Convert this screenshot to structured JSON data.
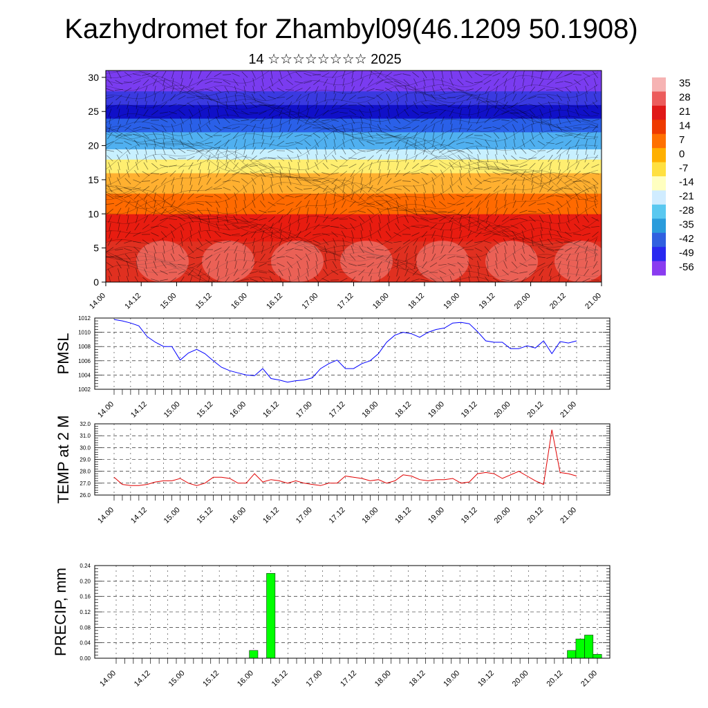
{
  "page": {
    "title": "Kazhydromet for Zhambyl09(46.1209 50.1908)",
    "subtitle": "14 ☆☆☆☆☆☆☆☆ 2025"
  },
  "chart_data": [
    {
      "id": "cross-section",
      "type": "heatmap",
      "title": "",
      "xlabel": "",
      "ylabel": "",
      "x_tick_labels": [
        "14.00",
        "14.12",
        "15.00",
        "15.12",
        "16.00",
        "16.12",
        "17.00",
        "17.12",
        "18.00",
        "18.12",
        "19.00",
        "19.12",
        "20.00",
        "20.12",
        "21.00"
      ],
      "ylim": [
        0,
        31
      ],
      "y_ticks": [
        0,
        5,
        10,
        15,
        20,
        25,
        30
      ],
      "colorbar": {
        "labels": [
          "35",
          "28",
          "21",
          "14",
          "7",
          "0",
          "-7",
          "-14",
          "-21",
          "-28",
          "-35",
          "-42",
          "-49",
          "-56"
        ],
        "colors": [
          "#f6b3b3",
          "#ec5c5c",
          "#e01818",
          "#ee3a00",
          "#ff7000",
          "#ffb000",
          "#ffe040",
          "#ffffc0",
          "#d0ecff",
          "#5ac8f0",
          "#2a9cdc",
          "#3060e0",
          "#2828f0",
          "#8a3cf0"
        ]
      },
      "field_bands": [
        {
          "from": 0,
          "to": 6,
          "color": "#e03020"
        },
        {
          "from": 6,
          "to": 10,
          "color": "#e81c10"
        },
        {
          "from": 10,
          "to": 13,
          "color": "#ff6a00"
        },
        {
          "from": 13,
          "to": 16,
          "color": "#ffb030"
        },
        {
          "from": 16,
          "to": 18,
          "color": "#ffee70"
        },
        {
          "from": 18,
          "to": 19.5,
          "color": "#c8f0ff"
        },
        {
          "from": 19.5,
          "to": 22,
          "color": "#50b0f0"
        },
        {
          "from": 22,
          "to": 24,
          "color": "#2a60e8"
        },
        {
          "from": 24,
          "to": 26,
          "color": "#1010c8"
        },
        {
          "from": 26,
          "to": 28,
          "color": "#3a3ae0"
        },
        {
          "from": 28,
          "to": 31,
          "color": "#7a3cf0"
        }
      ],
      "grid": false
    },
    {
      "id": "pmsl",
      "type": "line",
      "ylabel": "PMSL",
      "ylim": [
        1002,
        1012
      ],
      "y_ticks": [
        1002,
        1004,
        1006,
        1008,
        1010,
        1012
      ],
      "x_tick_labels": [
        "14.00",
        "14.12",
        "15.00",
        "15.12",
        "16.00",
        "16.12",
        "17.00",
        "17.12",
        "18.00",
        "18.12",
        "19.00",
        "19.12",
        "20.00",
        "20.12",
        "21.00"
      ],
      "color": "#0000ff",
      "grid": true,
      "x": [
        0,
        1,
        2,
        3,
        4,
        5,
        6,
        7,
        8,
        9,
        10,
        11,
        12,
        13,
        14,
        15,
        16,
        17,
        18,
        19,
        20,
        21,
        22,
        23,
        24,
        25,
        26,
        27,
        28,
        29,
        30,
        31,
        32,
        33,
        34,
        35,
        36,
        37,
        38,
        39,
        40,
        41,
        42,
        43,
        44,
        45,
        46,
        47,
        48,
        49,
        50,
        51,
        52,
        53,
        54,
        55,
        56
      ],
      "values": [
        1011.8,
        1011.6,
        1011.3,
        1010.9,
        1009.4,
        1008.6,
        1008.0,
        1008.0,
        1006.1,
        1007.1,
        1007.6,
        1007.0,
        1006.0,
        1005.1,
        1004.6,
        1004.3,
        1004.0,
        1003.9,
        1004.9,
        1003.5,
        1003.3,
        1003.0,
        1003.2,
        1003.3,
        1003.6,
        1004.9,
        1005.6,
        1006.1,
        1004.9,
        1004.9,
        1005.6,
        1006.0,
        1007.0,
        1008.6,
        1009.6,
        1010.0,
        1009.8,
        1009.3,
        1010.0,
        1010.4,
        1010.6,
        1011.3,
        1011.4,
        1011.2,
        1010.1,
        1008.8,
        1008.6,
        1008.6,
        1007.7,
        1007.7,
        1008.1,
        1007.8,
        1008.8,
        1007.0,
        1008.7,
        1008.5,
        1008.8
      ]
    },
    {
      "id": "temp2m",
      "type": "line",
      "ylabel": "TEMP at 2 M",
      "ylim": [
        26.0,
        32.0
      ],
      "y_ticks": [
        26.0,
        27.0,
        28.0,
        29.0,
        30.0,
        31.0,
        32.0
      ],
      "y_tick_labels": [
        "26.0",
        "27.0",
        "28.0",
        "29.0",
        "30.0",
        "31.0",
        "32.0"
      ],
      "x_tick_labels": [
        "14.00",
        "14.12",
        "15.00",
        "15.12",
        "16.00",
        "16.12",
        "17.00",
        "17.12",
        "18.00",
        "18.12",
        "19.00",
        "19.12",
        "20.00",
        "20.12",
        "21.00"
      ],
      "color": "#e00000",
      "grid": true,
      "x": [
        0,
        1,
        2,
        3,
        4,
        5,
        6,
        7,
        8,
        9,
        10,
        11,
        12,
        13,
        14,
        15,
        16,
        17,
        18,
        19,
        20,
        21,
        22,
        23,
        24,
        25,
        26,
        27,
        28,
        29,
        30,
        31,
        32,
        33,
        34,
        35,
        36,
        37,
        38,
        39,
        40,
        41,
        42,
        43,
        44,
        45,
        46,
        47,
        48,
        49,
        50,
        51,
        52,
        53,
        54,
        55,
        56
      ],
      "values": [
        27.5,
        26.9,
        26.8,
        26.8,
        26.9,
        27.1,
        27.2,
        27.2,
        27.4,
        27.0,
        26.8,
        27.0,
        27.5,
        27.5,
        27.4,
        27.0,
        27.0,
        27.8,
        27.1,
        27.3,
        27.2,
        27.0,
        27.2,
        27.0,
        26.9,
        26.8,
        27.0,
        27.0,
        27.6,
        27.5,
        27.4,
        27.2,
        27.3,
        27.0,
        27.2,
        27.7,
        27.6,
        27.3,
        27.2,
        27.3,
        27.3,
        27.4,
        27.0,
        27.1,
        27.8,
        27.9,
        27.8,
        27.4,
        27.7,
        28.0,
        27.6,
        27.2,
        26.9,
        31.5,
        27.9,
        27.8,
        27.6
      ]
    },
    {
      "id": "precip",
      "type": "bar",
      "ylabel": "PRECIP, mm",
      "ylim": [
        0.0,
        0.24
      ],
      "y_ticks": [
        0.0,
        0.04,
        0.08,
        0.12,
        0.16,
        0.2,
        0.24
      ],
      "y_tick_labels": [
        "0.00",
        "0.04",
        "0.08",
        "0.12",
        "0.16",
        "0.20",
        "0.24"
      ],
      "x_tick_labels": [
        "14.00",
        "14.12",
        "15.00",
        "15.12",
        "16.00",
        "16.12",
        "17.00",
        "17.12",
        "18.00",
        "18.12",
        "19.00",
        "19.12",
        "20.00",
        "20.12",
        "21.00"
      ],
      "color": "#00ff00",
      "grid": true,
      "bars": [
        {
          "x": 16.0,
          "value": 0.02
        },
        {
          "x": 18.0,
          "value": 0.22
        },
        {
          "x": 53.0,
          "value": 0.02
        },
        {
          "x": 54.0,
          "value": 0.05
        },
        {
          "x": 55.0,
          "value": 0.06
        },
        {
          "x": 56.0,
          "value": 0.01
        }
      ]
    }
  ]
}
